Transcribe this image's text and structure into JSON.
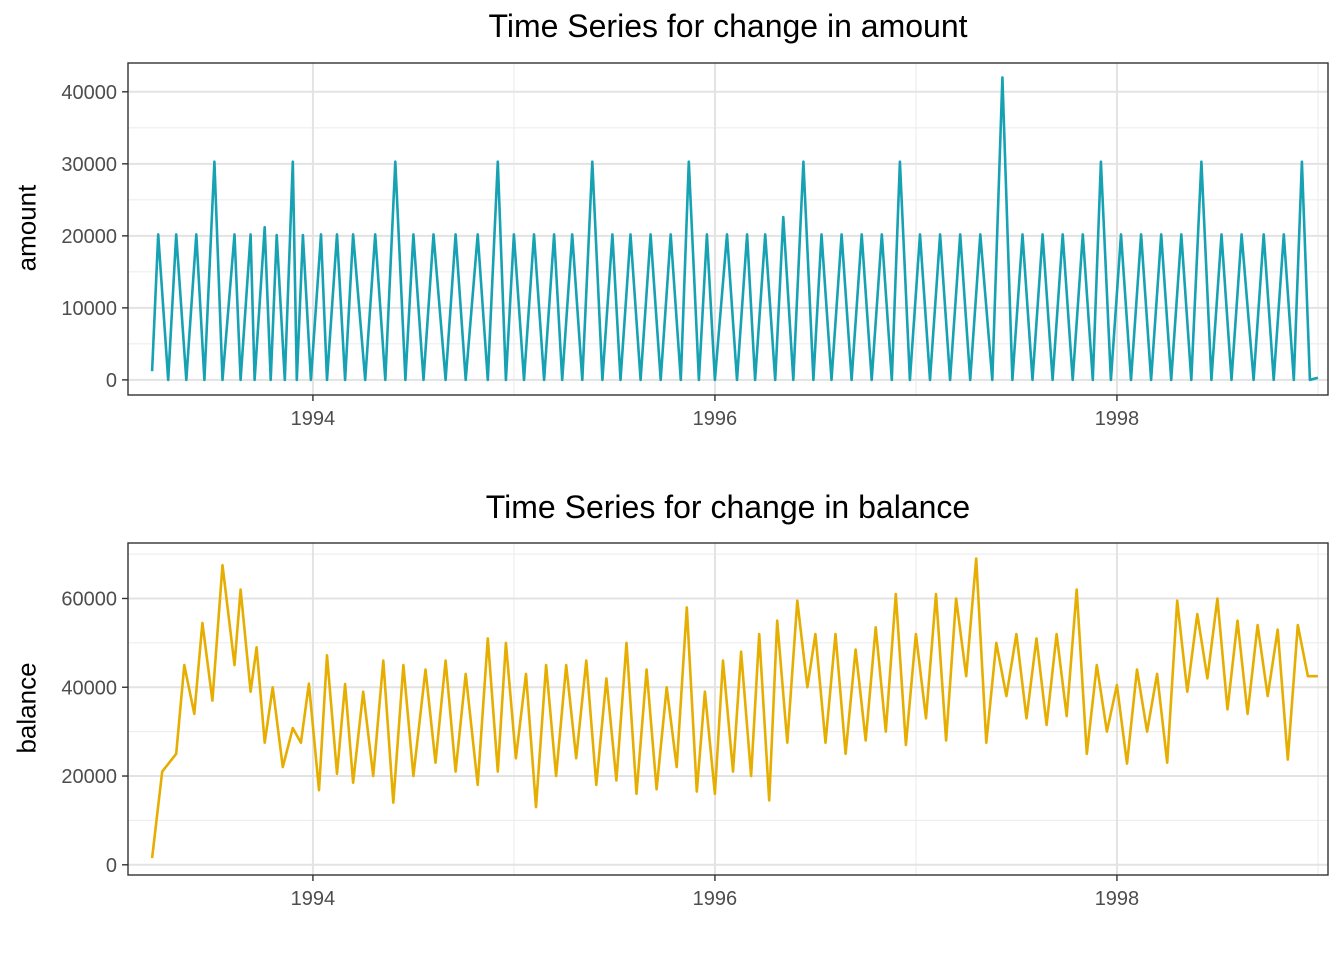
{
  "chart_data": [
    {
      "type": "line",
      "title": "Time Series for change in amount",
      "xlabel": "",
      "ylabel": "amount",
      "x_ticks": [
        "1994",
        "1996",
        "1998"
      ],
      "y_ticks": [
        0,
        10000,
        20000,
        30000,
        40000
      ],
      "xlim": [
        1993.08,
        1999.05
      ],
      "ylim": [
        -2100,
        44000
      ],
      "grid": true,
      "legend": "none",
      "line_color": "#17A2B3",
      "series": [
        {
          "x": [
            1993.2,
            1993.23,
            1993.28,
            1993.32,
            1993.37,
            1993.42,
            1993.46,
            1993.51,
            1993.55,
            1993.61,
            1993.64,
            1993.69,
            1993.71,
            1993.76,
            1993.79,
            1993.82,
            1993.86,
            1993.9,
            1993.92,
            1993.95,
            1993.99,
            1994.04,
            1994.07,
            1994.12,
            1994.16,
            1994.2,
            1994.26,
            1994.31,
            1994.36,
            1994.41,
            1994.46,
            1994.5,
            1994.55,
            1994.6,
            1994.66,
            1994.71,
            1994.76,
            1994.82,
            1994.87,
            1994.92,
            1994.96,
            1995.0,
            1995.05,
            1995.1,
            1995.15,
            1995.2,
            1995.24,
            1995.29,
            1995.34,
            1995.39,
            1995.44,
            1995.49,
            1995.53,
            1995.58,
            1995.63,
            1995.68,
            1995.73,
            1995.78,
            1995.83,
            1995.87,
            1995.92,
            1995.96,
            1996.0,
            1996.06,
            1996.11,
            1996.16,
            1996.2,
            1996.25,
            1996.3,
            1996.34,
            1996.39,
            1996.44,
            1996.49,
            1996.53,
            1996.58,
            1996.63,
            1996.68,
            1996.73,
            1996.78,
            1996.83,
            1996.88,
            1996.92,
            1996.97,
            1997.02,
            1997.07,
            1997.12,
            1997.17,
            1997.22,
            1997.27,
            1997.32,
            1997.38,
            1997.43,
            1997.48,
            1997.53,
            1997.58,
            1997.63,
            1997.68,
            1997.73,
            1997.78,
            1997.83,
            1997.88,
            1997.92,
            1997.97,
            1998.02,
            1998.07,
            1998.12,
            1998.17,
            1998.22,
            1998.27,
            1998.32,
            1998.37,
            1998.42,
            1998.47,
            1998.52,
            1998.57,
            1998.62,
            1998.68,
            1998.73,
            1998.78,
            1998.83,
            1998.88,
            1998.92,
            1998.96,
            1999.0
          ],
          "values": [
            1200,
            20200,
            0,
            20200,
            0,
            20200,
            0,
            30300,
            0,
            20200,
            0,
            20200,
            0,
            21200,
            0,
            20100,
            0,
            30300,
            0,
            20100,
            0,
            20200,
            0,
            20200,
            0,
            20200,
            0,
            20200,
            0,
            30300,
            0,
            20200,
            0,
            20200,
            0,
            20200,
            0,
            20200,
            0,
            30300,
            0,
            20200,
            0,
            20200,
            0,
            20200,
            0,
            20200,
            0,
            30300,
            0,
            20200,
            0,
            20200,
            0,
            20200,
            0,
            20200,
            0,
            30300,
            0,
            20200,
            0,
            20200,
            0,
            20200,
            0,
            20200,
            0,
            22600,
            0,
            30300,
            0,
            20200,
            0,
            20200,
            0,
            20200,
            0,
            20200,
            0,
            30300,
            0,
            20200,
            0,
            20200,
            0,
            20200,
            0,
            20200,
            0,
            42000,
            0,
            20200,
            0,
            20200,
            0,
            20200,
            0,
            20200,
            0,
            30300,
            0,
            20200,
            0,
            20200,
            0,
            20200,
            0,
            20200,
            0,
            30300,
            0,
            20200,
            0,
            20200,
            0,
            20200,
            0,
            20200,
            0,
            30300,
            0,
            300
          ]
        }
      ]
    },
    {
      "type": "line",
      "title": "Time Series for change in balance",
      "xlabel": "",
      "ylabel": "balance",
      "x_ticks": [
        "1994",
        "1996",
        "1998"
      ],
      "y_ticks": [
        0,
        20000,
        40000,
        60000
      ],
      "xlim": [
        1993.08,
        1999.05
      ],
      "ylim": [
        -2300,
        72500
      ],
      "grid": true,
      "legend": "none",
      "line_color": "#E6AE00",
      "series": [
        {
          "x": [
            1993.2,
            1993.25,
            1993.32,
            1993.36,
            1993.41,
            1993.45,
            1993.5,
            1993.55,
            1993.61,
            1993.64,
            1993.69,
            1993.72,
            1993.76,
            1993.8,
            1993.85,
            1993.9,
            1993.94,
            1993.98,
            1994.03,
            1994.07,
            1994.12,
            1994.16,
            1994.2,
            1994.25,
            1994.3,
            1994.35,
            1994.4,
            1994.45,
            1994.5,
            1994.56,
            1994.61,
            1994.66,
            1994.71,
            1994.76,
            1994.82,
            1994.87,
            1994.92,
            1994.96,
            1995.01,
            1995.06,
            1995.11,
            1995.16,
            1995.21,
            1995.26,
            1995.31,
            1995.36,
            1995.41,
            1995.46,
            1995.51,
            1995.56,
            1995.61,
            1995.66,
            1995.71,
            1995.76,
            1995.81,
            1995.86,
            1995.91,
            1995.95,
            1996.0,
            1996.04,
            1996.09,
            1996.13,
            1996.18,
            1996.22,
            1996.27,
            1996.31,
            1996.36,
            1996.41,
            1996.46,
            1996.5,
            1996.55,
            1996.6,
            1996.65,
            1996.7,
            1996.75,
            1996.8,
            1996.85,
            1996.9,
            1996.95,
            1997.0,
            1997.05,
            1997.1,
            1997.15,
            1997.2,
            1997.25,
            1997.3,
            1997.35,
            1997.4,
            1997.45,
            1997.5,
            1997.55,
            1997.6,
            1997.65,
            1997.7,
            1997.75,
            1997.8,
            1997.85,
            1997.9,
            1997.95,
            1998.0,
            1998.05,
            1998.1,
            1998.15,
            1998.2,
            1998.25,
            1998.3,
            1998.35,
            1998.4,
            1998.45,
            1998.5,
            1998.55,
            1998.6,
            1998.65,
            1998.7,
            1998.75,
            1998.8,
            1998.85,
            1998.9,
            1998.95,
            1999.0
          ],
          "values": [
            1500,
            21000,
            25000,
            45000,
            34000,
            54500,
            37000,
            67500,
            45000,
            62000,
            39000,
            49000,
            27500,
            40000,
            22000,
            30800,
            27500,
            40800,
            16800,
            47200,
            20500,
            40700,
            18500,
            39000,
            20000,
            46000,
            14000,
            45000,
            20000,
            44000,
            23000,
            46000,
            21000,
            43000,
            18000,
            51000,
            21000,
            50000,
            24000,
            43000,
            13000,
            45000,
            20000,
            45000,
            24000,
            46000,
            18000,
            42000,
            19000,
            50000,
            16000,
            44000,
            17000,
            40000,
            22000,
            58000,
            16500,
            39000,
            16000,
            46000,
            21000,
            48000,
            20000,
            52000,
            14500,
            55000,
            27500,
            59500,
            40000,
            52000,
            27500,
            52000,
            25000,
            48500,
            28000,
            53500,
            30000,
            61000,
            27000,
            52000,
            33000,
            61000,
            28000,
            60000,
            42500,
            69000,
            27500,
            50000,
            38000,
            52000,
            33000,
            51000,
            31500,
            52000,
            33500,
            62000,
            25000,
            45000,
            30000,
            40500,
            22800,
            44000,
            30000,
            43000,
            23000,
            59500,
            39000,
            56500,
            42000,
            60000,
            35000,
            55000,
            34000,
            54000,
            38000,
            53000,
            23700,
            54000,
            42500,
            42500
          ]
        }
      ]
    }
  ]
}
